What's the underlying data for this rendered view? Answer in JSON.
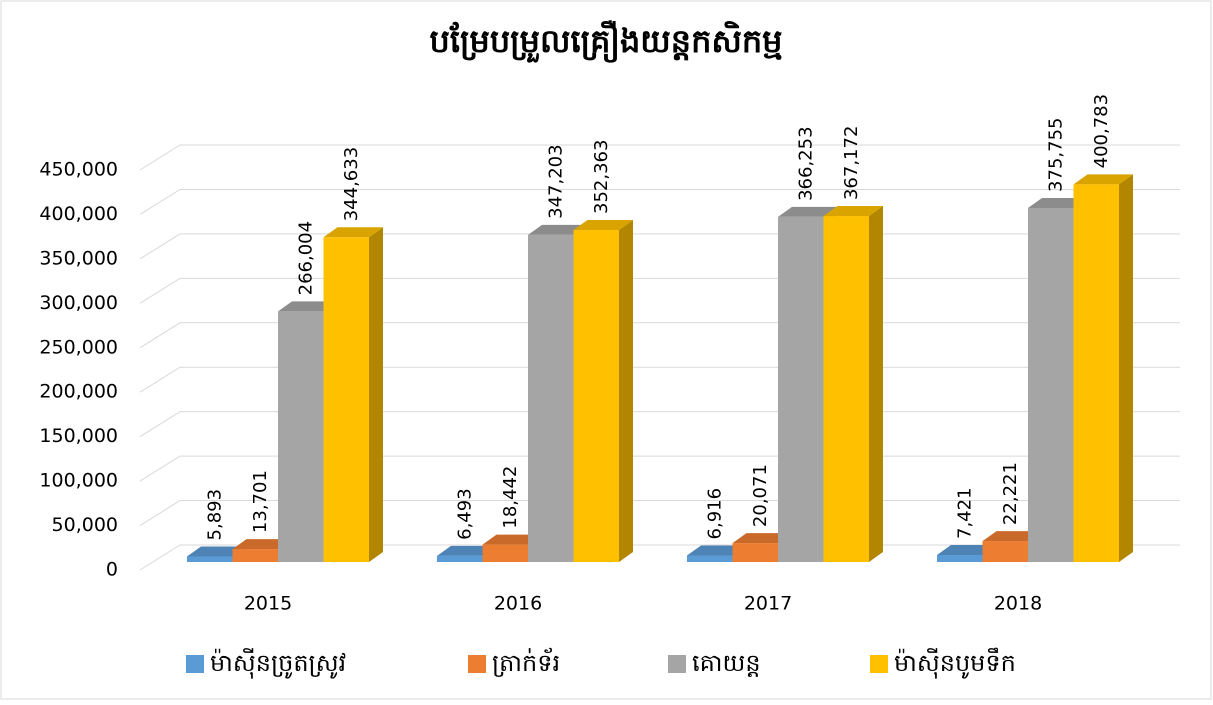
{
  "chart_data": {
    "type": "bar3d",
    "title": "បម្រែបម្រួលគ្រឿងយន្តកសិកម្ម",
    "categories": [
      "2015",
      "2016",
      "2017",
      "2018"
    ],
    "series": [
      {
        "name": "ម៉ាស៊ីនច្រូតស្រូវ",
        "color": "#5b9bd5",
        "values": [
          5893,
          6493,
          6916,
          7421
        ],
        "value_labels": [
          "5,893",
          "6,493",
          "6,916",
          "7,421"
        ]
      },
      {
        "name": "ត្រាក់ទ័រ",
        "color": "#ed7d31",
        "values": [
          13701,
          18442,
          20071,
          22221
        ],
        "value_labels": [
          "13,701",
          "18,442",
          "20,071",
          "22,221"
        ]
      },
      {
        "name": "គោយន្ត",
        "color": "#a5a5a5",
        "values": [
          266004,
          347203,
          366253,
          375755
        ],
        "value_labels": [
          "266,004",
          "347,203",
          "366,253",
          "375,755"
        ]
      },
      {
        "name": "ម៉ាស៊ីនបូមទឹក",
        "color": "#ffc000",
        "values": [
          344633,
          352363,
          367172,
          400783
        ],
        "value_labels": [
          "344,633",
          "352,363",
          "367,172",
          "400,783"
        ]
      }
    ],
    "ylim": [
      0,
      450000
    ],
    "yticks": [
      0,
      {
        "value": 50000,
        "label": "50,000"
      },
      {
        "value": 100000,
        "label": "100,000"
      },
      {
        "value": 150000,
        "label": "150,000"
      },
      {
        "value": 200000,
        "label": "200,000"
      },
      {
        "value": 250000,
        "label": "250,000"
      },
      {
        "value": 300000,
        "label": "300,000"
      },
      {
        "value": 350000,
        "label": "350,000"
      },
      {
        "value": 400000,
        "label": "400,000"
      },
      {
        "value": 450000,
        "label": "450,000"
      }
    ],
    "grid": true,
    "legend": "bottom"
  }
}
